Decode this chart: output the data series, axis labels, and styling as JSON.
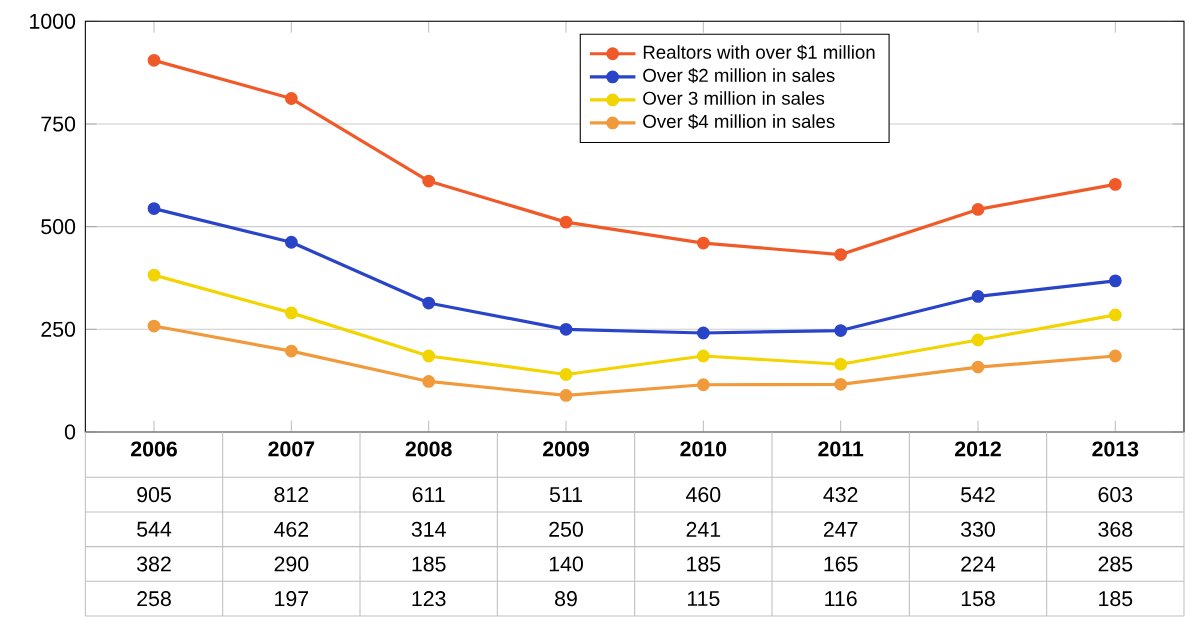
{
  "chart_data": {
    "type": "line",
    "categories": [
      "2006",
      "2007",
      "2008",
      "2009",
      "2010",
      "2011",
      "2012",
      "2013"
    ],
    "series": [
      {
        "name": "Realtors with over $1 million",
        "color": "#f05a28",
        "values": [
          905,
          812,
          611,
          511,
          460,
          432,
          542,
          603
        ]
      },
      {
        "name": "Over $2 million in sales",
        "color": "#2a44c8",
        "values": [
          544,
          462,
          314,
          250,
          241,
          247,
          330,
          368
        ]
      },
      {
        "name": "Over 3 million in sales",
        "color": "#f2d400",
        "values": [
          382,
          290,
          185,
          140,
          185,
          165,
          224,
          285
        ]
      },
      {
        "name": "Over $4 million in sales",
        "color": "#f09a3c",
        "values": [
          258,
          197,
          123,
          89,
          115,
          116,
          158,
          185
        ]
      }
    ],
    "ylim": [
      0,
      1000
    ],
    "yticks": [
      0,
      250,
      500,
      750,
      1000
    ],
    "grid": "y",
    "legend": "top",
    "marker": "circle",
    "data_labels": true
  }
}
